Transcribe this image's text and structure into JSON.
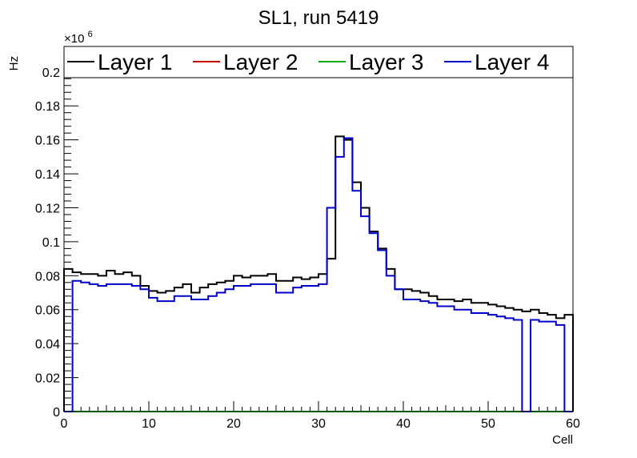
{
  "chart_data": {
    "type": "histogram",
    "title": "SL1, run 5419",
    "xlabel": "Cell",
    "ylabel": "Hz",
    "y_multiplier_base": "×10",
    "y_multiplier_exp": "6",
    "xlim": [
      0,
      60
    ],
    "ylim": [
      0,
      0.215
    ],
    "x_ticks": [
      0,
      10,
      20,
      30,
      40,
      50,
      60
    ],
    "x_tick_labels": [
      "0",
      "10",
      "20",
      "30",
      "40",
      "50",
      "60"
    ],
    "y_ticks": [
      0,
      0.02,
      0.04,
      0.06,
      0.08,
      0.1,
      0.12,
      0.14,
      0.16,
      0.18,
      0.2
    ],
    "y_tick_labels": [
      "0",
      "0.02",
      "0.04",
      "0.06",
      "0.08",
      "0.1",
      "0.12",
      "0.14",
      "0.16",
      "0.18",
      "0.2"
    ],
    "bin_width": 1,
    "series": [
      {
        "name": "Layer 1",
        "color": "#000000",
        "values": [
          0.084,
          0.082,
          0.081,
          0.081,
          0.08,
          0.083,
          0.081,
          0.082,
          0.08,
          0.074,
          0.071,
          0.07,
          0.071,
          0.073,
          0.075,
          0.07,
          0.073,
          0.075,
          0.076,
          0.077,
          0.08,
          0.079,
          0.08,
          0.08,
          0.081,
          0.077,
          0.077,
          0.079,
          0.078,
          0.079,
          0.081,
          0.09,
          0.162,
          0.16,
          0.135,
          0.12,
          0.106,
          0.096,
          0.084,
          0.072,
          0.072,
          0.071,
          0.07,
          0.068,
          0.066,
          0.066,
          0.065,
          0.066,
          0.064,
          0.064,
          0.063,
          0.062,
          0.061,
          0.06,
          0.059,
          0.06,
          0.058,
          0.057,
          0.055,
          0.057
        ]
      },
      {
        "name": "Layer 2",
        "color": "#cc0000",
        "values": [
          0,
          0,
          0,
          0,
          0,
          0,
          0,
          0,
          0,
          0,
          0,
          0,
          0,
          0,
          0,
          0,
          0,
          0,
          0,
          0,
          0,
          0,
          0,
          0,
          0,
          0,
          0,
          0,
          0,
          0,
          0,
          0,
          0,
          0,
          0,
          0,
          0,
          0,
          0,
          0,
          0,
          0,
          0,
          0,
          0,
          0,
          0,
          0,
          0,
          0,
          0,
          0,
          0,
          0,
          0,
          0,
          0,
          0,
          0,
          0
        ]
      },
      {
        "name": "Layer 3",
        "color": "#00aa00",
        "values": [
          0,
          0,
          0,
          0,
          0,
          0,
          0,
          0,
          0,
          0,
          0,
          0,
          0,
          0,
          0,
          0,
          0,
          0,
          0,
          0,
          0,
          0,
          0,
          0,
          0,
          0,
          0,
          0,
          0,
          0,
          0,
          0,
          0,
          0,
          0,
          0,
          0,
          0,
          0,
          0,
          0,
          0,
          0,
          0,
          0,
          0,
          0,
          0,
          0,
          0,
          0,
          0,
          0,
          0,
          0,
          0,
          0,
          0,
          0,
          0
        ]
      },
      {
        "name": "Layer 4",
        "color": "#0000cc",
        "values": [
          0,
          0.077,
          0.076,
          0.075,
          0.074,
          0.075,
          0.075,
          0.075,
          0.074,
          0.072,
          0.067,
          0.065,
          0.065,
          0.068,
          0.068,
          0.066,
          0.066,
          0.068,
          0.07,
          0.072,
          0.074,
          0.074,
          0.075,
          0.075,
          0.075,
          0.07,
          0.07,
          0.073,
          0.074,
          0.074,
          0.075,
          0.12,
          0.15,
          0.161,
          0.13,
          0.115,
          0.105,
          0.095,
          0.08,
          0.072,
          0.066,
          0.066,
          0.065,
          0.064,
          0.062,
          0.062,
          0.06,
          0.06,
          0.058,
          0.058,
          0.057,
          0.056,
          0.055,
          0.054,
          0,
          0.054,
          0.053,
          0.053,
          0.051,
          0
        ]
      }
    ],
    "legend": {
      "position": "top-wide",
      "entries": [
        "Layer 1",
        "Layer 2",
        "Layer 3",
        "Layer 4"
      ]
    }
  }
}
